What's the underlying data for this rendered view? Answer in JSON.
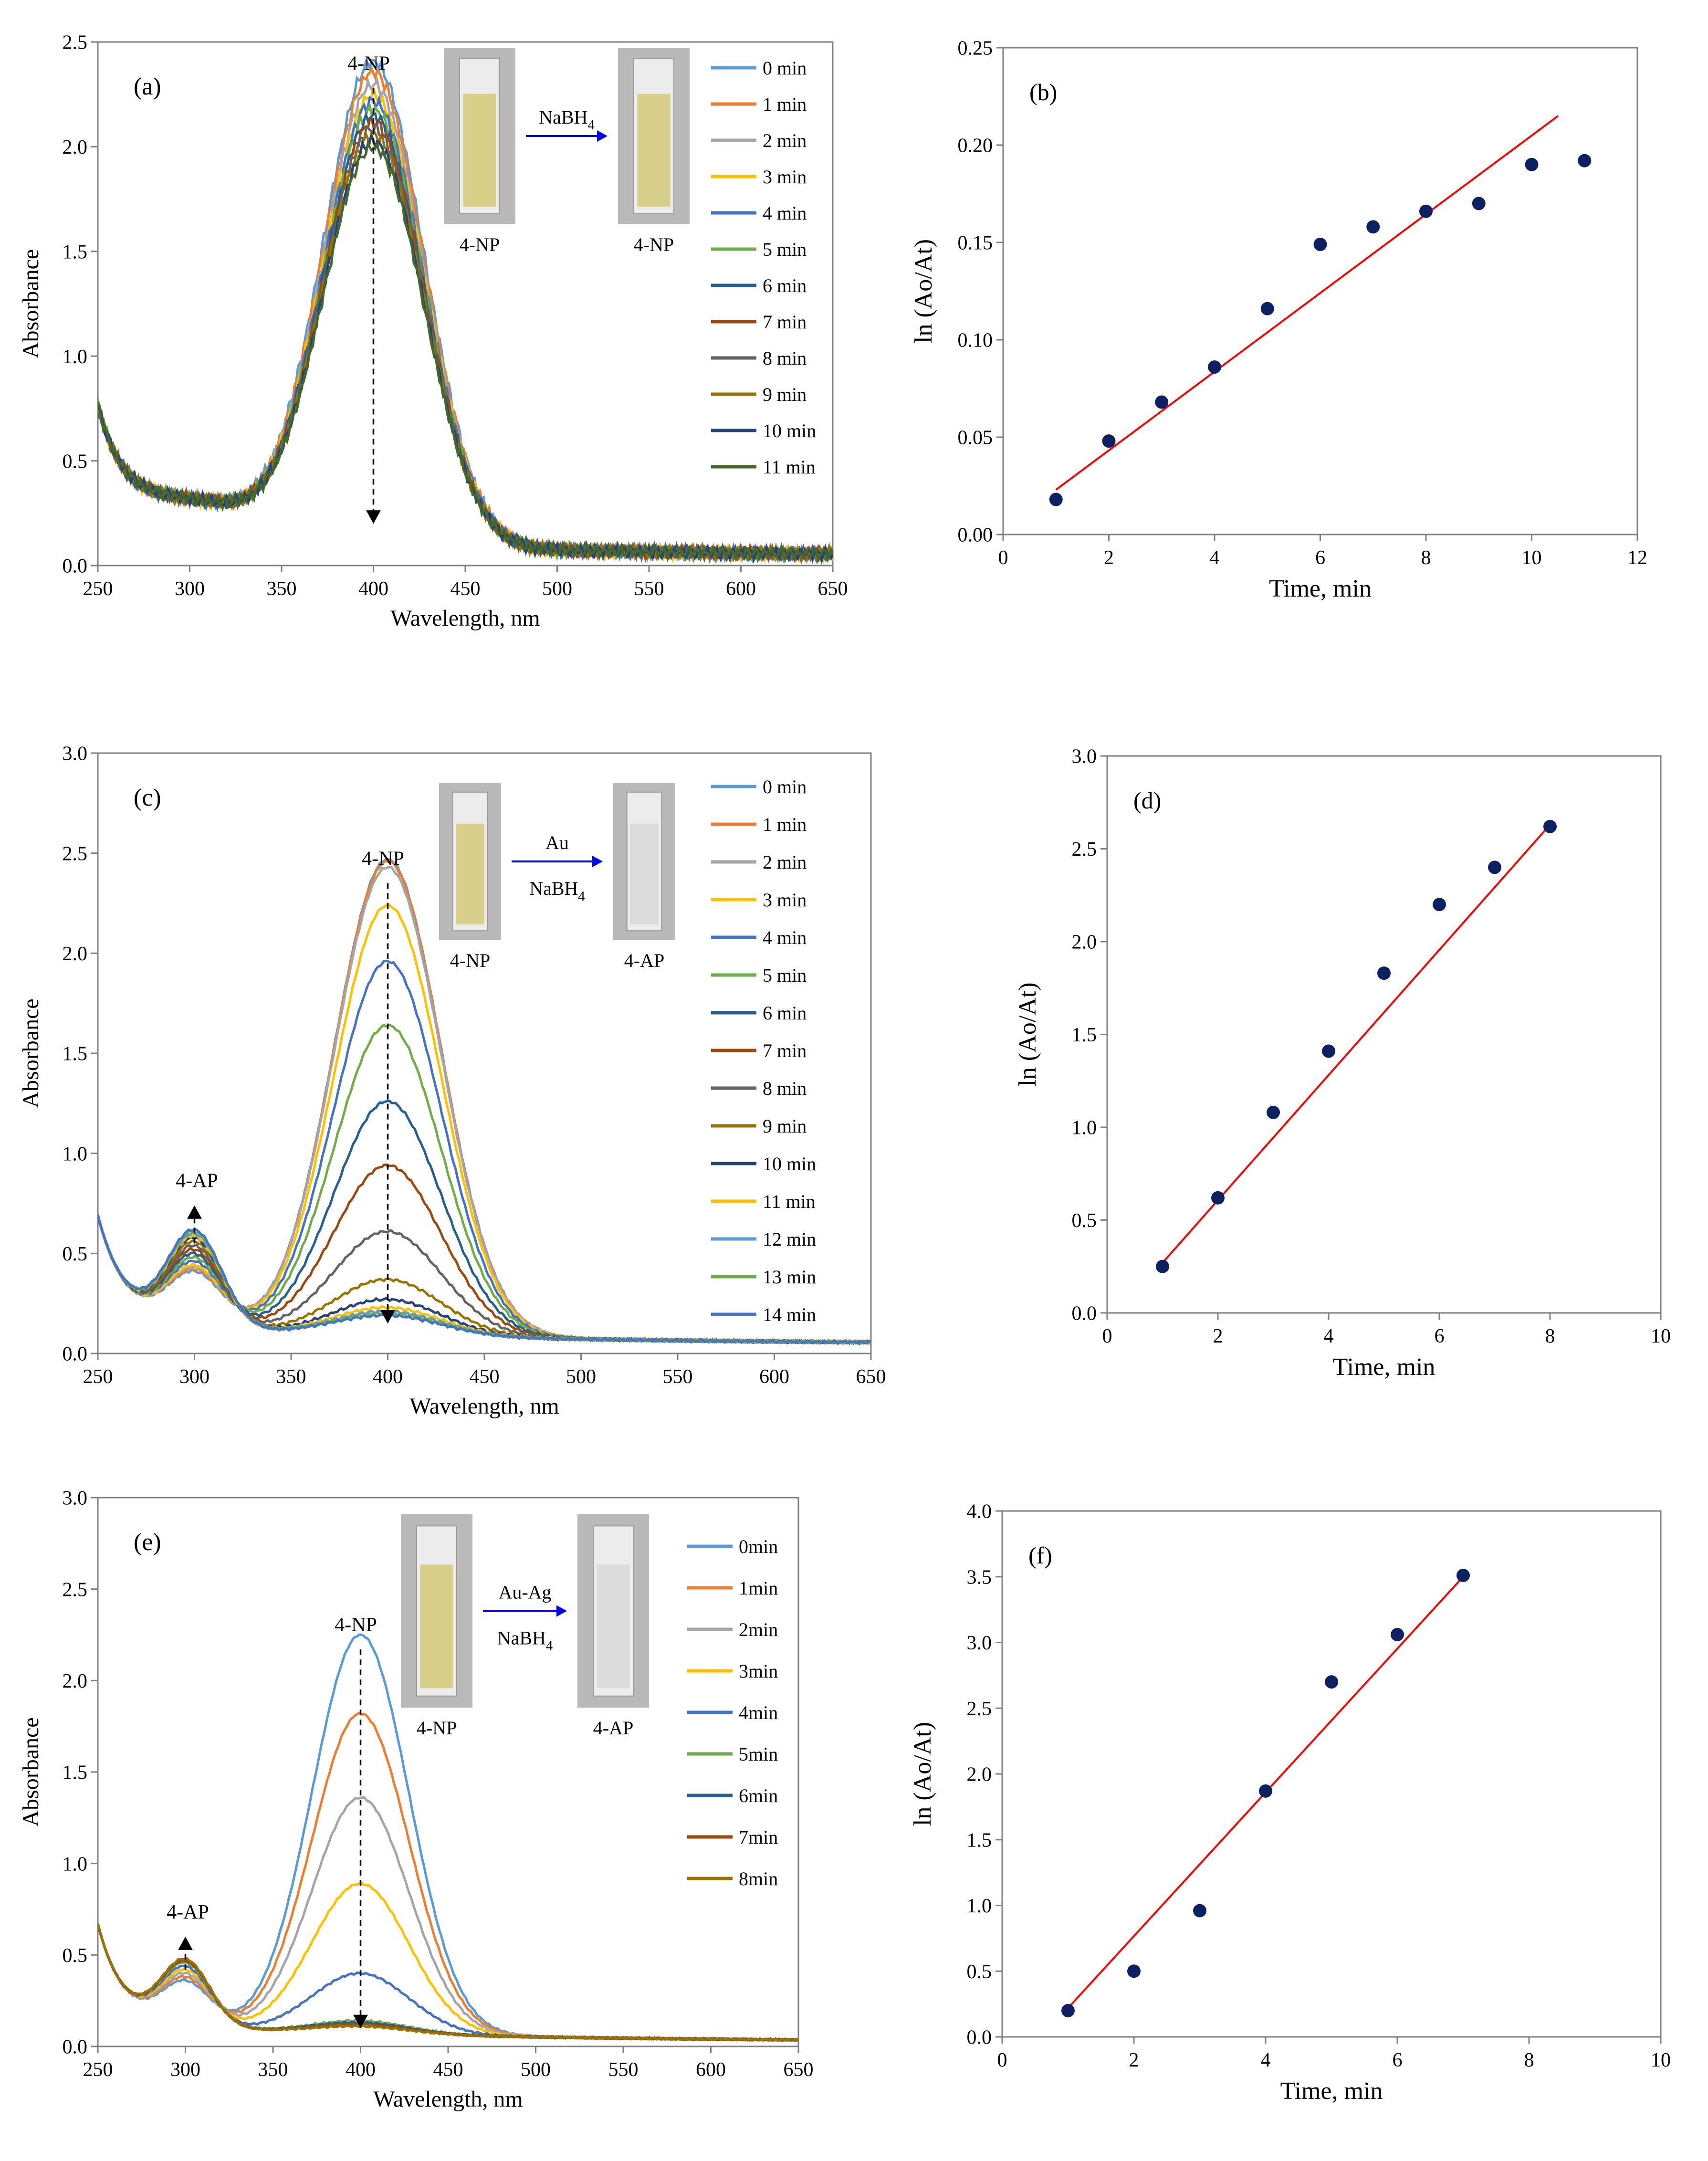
{
  "figure": {
    "spectrum_ylabel": "Absorbance",
    "spectrum_xlabel": "Wavelength, nm",
    "kinetics_ylabel": "ln (Ao/At)",
    "kinetics_xlabel": "Time, min",
    "colors": {
      "axis": "#7f7f7f",
      "fit_line": "#ff0000",
      "points": "#0d2160",
      "arrow_blue": "#0000ff",
      "cuvette_yellow": "#d8d08a",
      "cuvette_clear": "#dcdcdc"
    }
  },
  "chart_data": [
    {
      "id": "a",
      "type": "line",
      "panel_label": "(a)",
      "title": "",
      "xlabel": "Wavelength, nm",
      "ylabel": "Absorbance",
      "xlim": [
        250,
        650
      ],
      "ylim": [
        0,
        2.5
      ],
      "xticks": [
        250,
        300,
        350,
        400,
        450,
        500,
        550,
        600,
        650
      ],
      "yticks": [
        0.0,
        0.5,
        1.0,
        1.5,
        2.0,
        2.5
      ],
      "legend": "right",
      "peak_label": "4-NP",
      "peak_arrow": {
        "x": 400,
        "from": 2.28,
        "to": 0.2
      },
      "inset": {
        "left_label": "4-NP",
        "right_label": "4-NP",
        "reagents": [
          "NaBH4"
        ],
        "before": "yellow",
        "after": "yellow"
      },
      "series": [
        {
          "name": "0 min",
          "color": "#5b9bd5",
          "peak": 2.31,
          "base": 0.04,
          "ap": 0.0,
          "noise": 0.035
        },
        {
          "name": "1 min",
          "color": "#ed7d31",
          "peak": 2.26,
          "base": 0.04,
          "ap": 0.0,
          "noise": 0.035
        },
        {
          "name": "2 min",
          "color": "#a5a5a5",
          "peak": 2.2,
          "base": 0.04,
          "ap": 0.0,
          "noise": 0.035
        },
        {
          "name": "3 min",
          "color": "#ffc000",
          "peak": 2.15,
          "base": 0.04,
          "ap": 0.0,
          "noise": 0.035
        },
        {
          "name": "4 min",
          "color": "#4472c4",
          "peak": 2.12,
          "base": 0.04,
          "ap": 0.0,
          "noise": 0.035
        },
        {
          "name": "5 min",
          "color": "#70ad47",
          "peak": 2.08,
          "base": 0.04,
          "ap": 0.0,
          "noise": 0.035
        },
        {
          "name": "6 min",
          "color": "#255e91",
          "peak": 2.05,
          "base": 0.04,
          "ap": 0.0,
          "noise": 0.035
        },
        {
          "name": "7 min",
          "color": "#9e480e",
          "peak": 2.02,
          "base": 0.04,
          "ap": 0.0,
          "noise": 0.035
        },
        {
          "name": "8 min",
          "color": "#636363",
          "peak": 1.99,
          "base": 0.04,
          "ap": 0.0,
          "noise": 0.035
        },
        {
          "name": "9 min",
          "color": "#997300",
          "peak": 1.96,
          "base": 0.04,
          "ap": 0.0,
          "noise": 0.035
        },
        {
          "name": "10 min",
          "color": "#264478",
          "peak": 1.93,
          "base": 0.04,
          "ap": 0.0,
          "noise": 0.035
        },
        {
          "name": "11 min",
          "color": "#43682b",
          "peak": 1.9,
          "base": 0.04,
          "ap": 0.0,
          "noise": 0.035
        }
      ]
    },
    {
      "id": "b",
      "type": "scatter",
      "panel_label": "(b)",
      "title": "",
      "xlabel": "Time, min",
      "ylabel": "ln (Ao/At)",
      "xlim": [
        0,
        12
      ],
      "ylim": [
        0,
        0.25
      ],
      "xticks": [
        0,
        2,
        4,
        6,
        8,
        10,
        12
      ],
      "yticks": [
        0.0,
        0.05,
        0.1,
        0.15,
        0.2,
        0.25
      ],
      "ytick_decimals": 2,
      "x": [
        1,
        2,
        3,
        4,
        5,
        6,
        7,
        8,
        9,
        10,
        11
      ],
      "y": [
        0.018,
        0.048,
        0.068,
        0.086,
        0.116,
        0.149,
        0.158,
        0.166,
        0.17,
        0.19,
        0.192
      ],
      "fit": {
        "x0": 1,
        "y0": 0.023,
        "x1": 10.5,
        "y1": 0.215
      }
    },
    {
      "id": "c",
      "type": "line",
      "panel_label": "(c)",
      "title": "",
      "xlabel": "Wavelength, nm",
      "ylabel": "Absorbance",
      "xlim": [
        250,
        650
      ],
      "ylim": [
        0,
        3.0
      ],
      "xticks": [
        250,
        300,
        350,
        400,
        450,
        500,
        550,
        600,
        650
      ],
      "yticks": [
        0.0,
        0.5,
        1.0,
        1.5,
        2.0,
        2.5,
        3.0
      ],
      "legend": "right",
      "peak_label": "4-NP",
      "peak_arrow": {
        "x": 400,
        "from": 2.35,
        "to": 0.15
      },
      "ap_label": "4-AP",
      "ap_arrow": {
        "x": 300,
        "from": 0.55,
        "to": 0.74
      },
      "inset": {
        "left_label": "4-NP",
        "right_label": "4-AP",
        "reagents": [
          "Au",
          "NaBH4"
        ],
        "before": "yellow",
        "after": "clear"
      },
      "series": [
        {
          "name": "0 min",
          "color": "#5b9bd5",
          "peak": 2.38,
          "base": 0.04,
          "ap": 0.27,
          "noise": 0.008
        },
        {
          "name": "1 min",
          "color": "#ed7d31",
          "peak": 2.37,
          "base": 0.04,
          "ap": 0.28,
          "noise": 0.008
        },
        {
          "name": "2 min",
          "color": "#a5a5a5",
          "peak": 2.34,
          "base": 0.04,
          "ap": 0.29,
          "noise": 0.008
        },
        {
          "name": "3 min",
          "color": "#ffc000",
          "peak": 2.15,
          "base": 0.04,
          "ap": 0.3,
          "noise": 0.008
        },
        {
          "name": "4 min",
          "color": "#4472c4",
          "peak": 1.87,
          "base": 0.04,
          "ap": 0.32,
          "noise": 0.008
        },
        {
          "name": "5 min",
          "color": "#70ad47",
          "peak": 1.55,
          "base": 0.04,
          "ap": 0.34,
          "noise": 0.008
        },
        {
          "name": "6 min",
          "color": "#255e91",
          "peak": 1.17,
          "base": 0.04,
          "ap": 0.36,
          "noise": 0.008
        },
        {
          "name": "7 min",
          "color": "#9e480e",
          "peak": 0.85,
          "base": 0.04,
          "ap": 0.38,
          "noise": 0.008
        },
        {
          "name": "8 min",
          "color": "#636363",
          "peak": 0.52,
          "base": 0.04,
          "ap": 0.4,
          "noise": 0.008
        },
        {
          "name": "9 min",
          "color": "#997300",
          "peak": 0.28,
          "base": 0.04,
          "ap": 0.42,
          "noise": 0.008
        },
        {
          "name": "10 min",
          "color": "#264478",
          "peak": 0.18,
          "base": 0.04,
          "ap": 0.44,
          "noise": 0.008
        },
        {
          "name": "11 min",
          "color": "#ffc000",
          "peak": 0.14,
          "base": 0.04,
          "ap": 0.45,
          "noise": 0.008
        },
        {
          "name": "12 min",
          "color": "#5b9bd5",
          "peak": 0.12,
          "base": 0.04,
          "ap": 0.46,
          "noise": 0.008
        },
        {
          "name": "13 min",
          "color": "#70ad47",
          "peak": 0.11,
          "base": 0.04,
          "ap": 0.47,
          "noise": 0.008
        },
        {
          "name": "14 min",
          "color": "#4472c4",
          "peak": 0.1,
          "base": 0.04,
          "ap": 0.48,
          "noise": 0.008
        }
      ]
    },
    {
      "id": "d",
      "type": "scatter",
      "panel_label": "(d)",
      "title": "",
      "xlabel": "Time, min",
      "ylabel": "ln (Ao/At)",
      "xlim": [
        0,
        10
      ],
      "ylim": [
        0,
        3.0
      ],
      "xticks": [
        0,
        2,
        4,
        6,
        8,
        10
      ],
      "yticks": [
        0.0,
        0.5,
        1.0,
        1.5,
        2.0,
        2.5,
        3.0
      ],
      "ytick_decimals": 1,
      "x": [
        1,
        2,
        3,
        4,
        5,
        6,
        7,
        8
      ],
      "y": [
        0.25,
        0.62,
        1.08,
        1.41,
        1.83,
        2.2,
        2.4,
        2.62
      ],
      "fit": {
        "x0": 1,
        "y0": 0.27,
        "x1": 8,
        "y1": 2.63
      }
    },
    {
      "id": "e",
      "type": "line",
      "panel_label": "(e)",
      "title": "",
      "xlabel": "Wavelength, nm",
      "ylabel": "Absorbance",
      "xlim": [
        250,
        650
      ],
      "ylim": [
        0,
        3.0
      ],
      "xticks": [
        250,
        300,
        350,
        400,
        450,
        500,
        550,
        600,
        650
      ],
      "yticks": [
        0.0,
        0.5,
        1.0,
        1.5,
        2.0,
        2.5,
        3.0
      ],
      "legend": "right",
      "peak_label": "4-NP",
      "peak_arrow": {
        "x": 400,
        "from": 2.17,
        "to": 0.1
      },
      "ap_label": "4-AP",
      "ap_arrow": {
        "x": 300,
        "from": 0.42,
        "to": 0.6
      },
      "inset": {
        "left_label": "4-NP",
        "right_label": "4-AP",
        "reagents": [
          "Au-Ag",
          "NaBH4"
        ],
        "before": "yellow",
        "after": "clear"
      },
      "series": [
        {
          "name": "0min",
          "color": "#5b9bd5",
          "peak": 2.18,
          "base": 0.02,
          "ap": 0.24,
          "noise": 0.006
        },
        {
          "name": "1min",
          "color": "#ed7d31",
          "peak": 1.75,
          "base": 0.02,
          "ap": 0.26,
          "noise": 0.006
        },
        {
          "name": "2min",
          "color": "#a5a5a5",
          "peak": 1.29,
          "base": 0.02,
          "ap": 0.28,
          "noise": 0.006
        },
        {
          "name": "3min",
          "color": "#ffc000",
          "peak": 0.82,
          "base": 0.02,
          "ap": 0.3,
          "noise": 0.006
        },
        {
          "name": "4min",
          "color": "#4472c4",
          "peak": 0.33,
          "base": 0.02,
          "ap": 0.32,
          "noise": 0.006
        },
        {
          "name": "5min",
          "color": "#70ad47",
          "peak": 0.07,
          "base": 0.02,
          "ap": 0.34,
          "noise": 0.006
        },
        {
          "name": "6min",
          "color": "#255e91",
          "peak": 0.06,
          "base": 0.02,
          "ap": 0.35,
          "noise": 0.006
        },
        {
          "name": "7min",
          "color": "#9e480e",
          "peak": 0.05,
          "base": 0.02,
          "ap": 0.35,
          "noise": 0.006
        },
        {
          "name": "8min",
          "color": "#997300",
          "peak": 0.04,
          "base": 0.02,
          "ap": 0.36,
          "noise": 0.006
        }
      ]
    },
    {
      "id": "f",
      "type": "scatter",
      "panel_label": "(f)",
      "title": "",
      "xlabel": "Time, min",
      "ylabel": "ln (Ao/At)",
      "xlim": [
        0,
        10
      ],
      "ylim": [
        0,
        4.0
      ],
      "xticks": [
        0,
        2,
        4,
        6,
        8,
        10
      ],
      "yticks": [
        0.0,
        0.5,
        1.0,
        1.5,
        2.0,
        2.5,
        3.0,
        3.5,
        4.0
      ],
      "ytick_decimals": 1,
      "x": [
        1,
        2,
        3,
        4,
        5,
        6,
        7
      ],
      "y": [
        0.2,
        0.5,
        0.96,
        1.87,
        2.7,
        3.06,
        3.51
      ],
      "fit": {
        "x0": 1,
        "y0": 0.22,
        "x1": 7,
        "y1": 3.5
      }
    }
  ]
}
